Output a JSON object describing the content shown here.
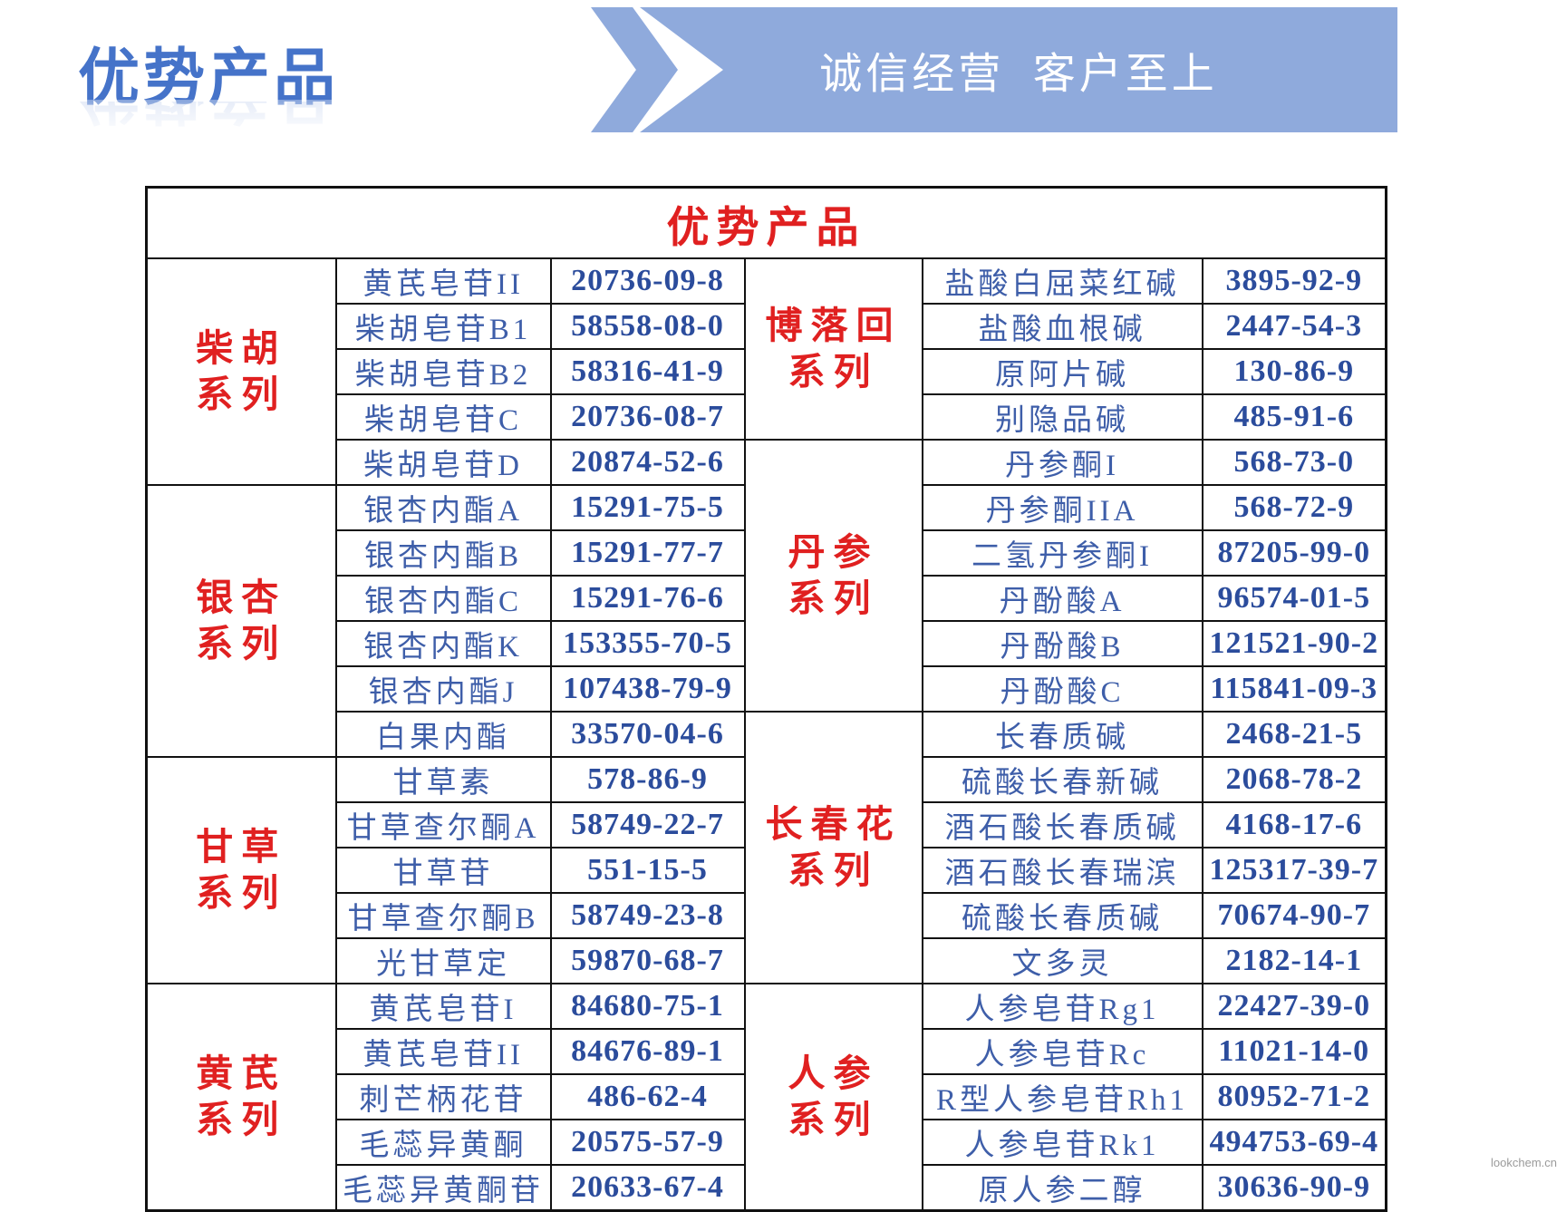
{
  "page": {
    "title": "优势产品",
    "banner_text": "诚信经营  客户至上",
    "watermark": "lookchem.cn"
  },
  "colors": {
    "title_blue": "#4573C9",
    "banner_blue": "#8FAADC",
    "heading_red": "#E02020",
    "product_blue": "#3E5EA9",
    "cas_blue": "#2B4C9C",
    "border_black": "#111111"
  },
  "table": {
    "title": "优势产品",
    "left_groups": [
      {
        "category": "柴胡系列",
        "items": [
          {
            "name": "黄芪皂苷II",
            "cas": "20736-09-8"
          },
          {
            "name": "柴胡皂苷B1",
            "cas": "58558-08-0"
          },
          {
            "name": "柴胡皂苷B2",
            "cas": "58316-41-9"
          },
          {
            "name": "柴胡皂苷C",
            "cas": "20736-08-7"
          },
          {
            "name": "柴胡皂苷D",
            "cas": "20874-52-6"
          }
        ]
      },
      {
        "category": "银杏系列",
        "items": [
          {
            "name": "银杏内酯A",
            "cas": "15291-75-5"
          },
          {
            "name": "银杏内酯B",
            "cas": "15291-77-7"
          },
          {
            "name": "银杏内酯C",
            "cas": "15291-76-6"
          },
          {
            "name": "银杏内酯K",
            "cas": "153355-70-5"
          },
          {
            "name": "银杏内酯J",
            "cas": "107438-79-9"
          },
          {
            "name": "白果内酯",
            "cas": "33570-04-6"
          }
        ]
      },
      {
        "category": "甘草系列",
        "items": [
          {
            "name": "甘草素",
            "cas": "578-86-9"
          },
          {
            "name": "甘草查尔酮A",
            "cas": "58749-22-7"
          },
          {
            "name": "甘草苷",
            "cas": "551-15-5"
          },
          {
            "name": "甘草查尔酮B",
            "cas": "58749-23-8"
          },
          {
            "name": "光甘草定",
            "cas": "59870-68-7"
          }
        ]
      },
      {
        "category": "黄芪系列",
        "items": [
          {
            "name": "黄芪皂苷I",
            "cas": "84680-75-1"
          },
          {
            "name": "黄芪皂苷II",
            "cas": "84676-89-1"
          },
          {
            "name": "刺芒柄花苷",
            "cas": "486-62-4"
          },
          {
            "name": "毛蕊异黄酮",
            "cas": "20575-57-9"
          },
          {
            "name": "毛蕊异黄酮苷",
            "cas": "20633-67-4"
          }
        ]
      }
    ],
    "right_groups": [
      {
        "category": "博落回系列",
        "items": [
          {
            "name": "盐酸白屈菜红碱",
            "cas": "3895-92-9"
          },
          {
            "name": "盐酸血根碱",
            "cas": "2447-54-3"
          },
          {
            "name": "原阿片碱",
            "cas": "130-86-9"
          },
          {
            "name": "别隐品碱",
            "cas": "485-91-6"
          }
        ]
      },
      {
        "category": "丹参系列",
        "items": [
          {
            "name": "丹参酮I",
            "cas": "568-73-0"
          },
          {
            "name": "丹参酮IIA",
            "cas": "568-72-9"
          },
          {
            "name": "二氢丹参酮I",
            "cas": "87205-99-0"
          },
          {
            "name": "丹酚酸A",
            "cas": "96574-01-5"
          },
          {
            "name": "丹酚酸B",
            "cas": "121521-90-2"
          },
          {
            "name": "丹酚酸C",
            "cas": "115841-09-3"
          }
        ]
      },
      {
        "category": "长春花系列",
        "items": [
          {
            "name": "长春质碱",
            "cas": "2468-21-5"
          },
          {
            "name": "硫酸长春新碱",
            "cas": "2068-78-2"
          },
          {
            "name": "酒石酸长春质碱",
            "cas": "4168-17-6"
          },
          {
            "name": "酒石酸长春瑞滨",
            "cas": "125317-39-7"
          },
          {
            "name": "硫酸长春质碱",
            "cas": "70674-90-7"
          },
          {
            "name": "文多灵",
            "cas": "2182-14-1"
          }
        ]
      },
      {
        "category": "人参系列",
        "items": [
          {
            "name": "人参皂苷Rg1",
            "cas": "22427-39-0"
          },
          {
            "name": "人参皂苷Rc",
            "cas": "11021-14-0"
          },
          {
            "name": "R型人参皂苷Rh1",
            "cas": "80952-71-2"
          },
          {
            "name": "人参皂苷Rk1",
            "cas": "494753-69-4"
          },
          {
            "name": "原人参二醇",
            "cas": "30636-90-9"
          }
        ]
      }
    ]
  }
}
